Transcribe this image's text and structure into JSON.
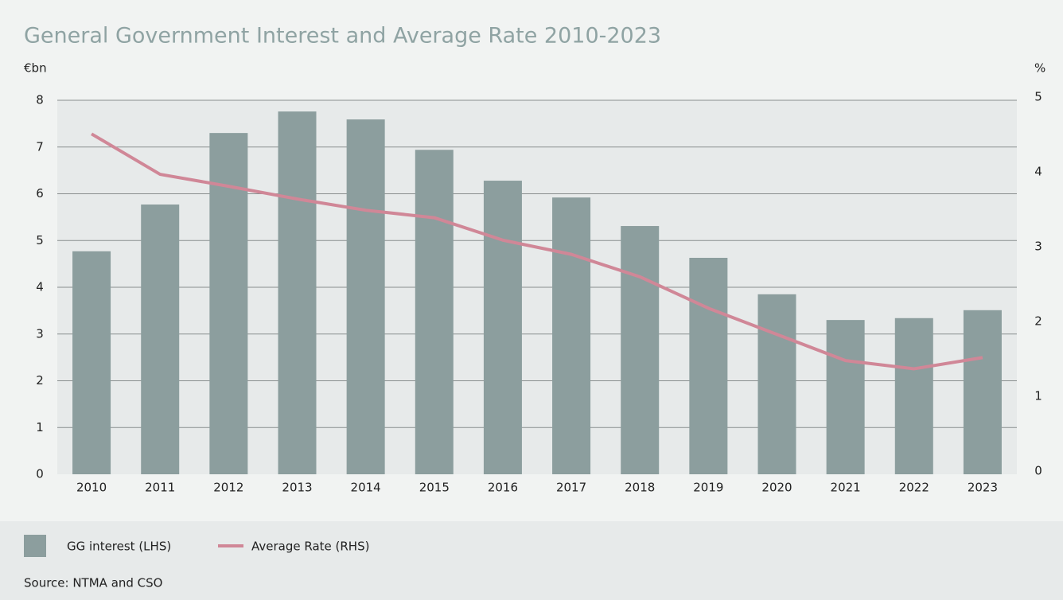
{
  "chart_data": {
    "type": "bar_line",
    "title": "General Government Interest and Average Rate 2010-2023",
    "y_label": "€bn",
    "y2_label": "%",
    "categories": [
      "2010",
      "2011",
      "2012",
      "2013",
      "2014",
      "2015",
      "2016",
      "2017",
      "2018",
      "2019",
      "2020",
      "2021",
      "2022",
      "2023"
    ],
    "series": [
      {
        "name": "GG interest (LHS)",
        "type": "bar",
        "color": "#8c9e9e",
        "values": [
          4.77,
          5.77,
          7.3,
          7.76,
          7.59,
          6.94,
          6.28,
          5.92,
          5.31,
          4.63,
          3.85,
          3.3,
          3.34,
          3.51
        ]
      },
      {
        "name": "Average Rate (RHS)",
        "type": "line",
        "axis": "y2",
        "color": "#d08797",
        "values": [
          4.55,
          4.01,
          3.85,
          3.68,
          3.53,
          3.43,
          3.13,
          2.94,
          2.64,
          2.22,
          1.87,
          1.52,
          1.41,
          1.56
        ]
      }
    ],
    "ylim": [
      0,
      8
    ],
    "yticks": [
      0,
      1,
      2,
      3,
      4,
      5,
      6,
      7,
      8
    ],
    "y2lim": [
      0,
      5
    ],
    "y2ticks": [
      0,
      1,
      2,
      3,
      4,
      5
    ],
    "grid": true,
    "source": "Source: NTMA and CSO"
  }
}
